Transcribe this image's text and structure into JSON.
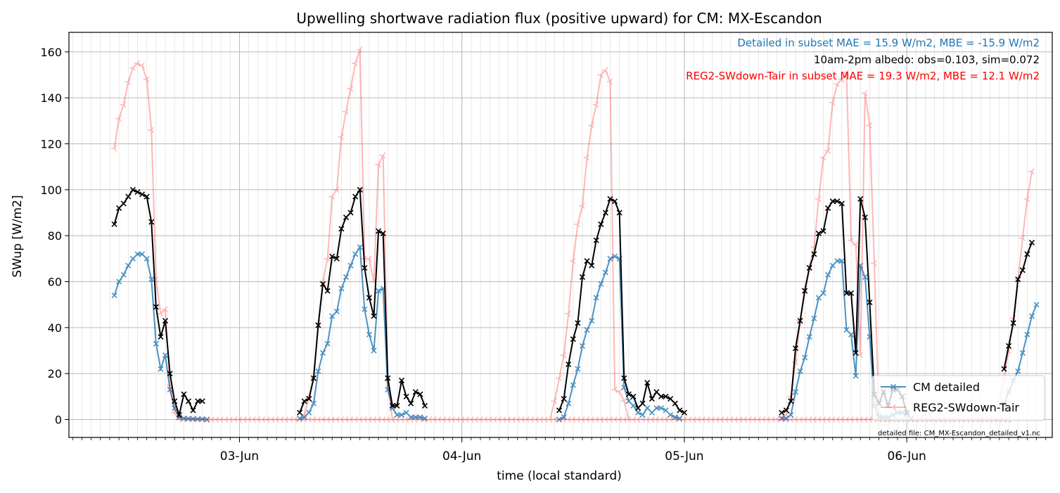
{
  "chart_data": {
    "type": "line",
    "title": "Upwelling shortwave radiation flux (positive upward) for CM: MX-Escandon",
    "xlabel": "time (local standard)",
    "ylabel": "SWup [W/m2]",
    "x_unit": "hours",
    "x_tick_labels": [
      "03-Jun",
      "04-Jun",
      "05-Jun",
      "06-Jun"
    ],
    "x_tick_values": [
      24,
      48,
      72,
      96
    ],
    "xlim": [
      5.6,
      111.7
    ],
    "ylim": [
      -7.8,
      168.5
    ],
    "y_ticks": [
      0,
      20,
      40,
      60,
      80,
      100,
      120,
      140,
      160
    ],
    "grid": true,
    "legend_position": "lower-right",
    "annotations": [
      {
        "text": "Detailed in subset MAE = 15.9 W/m2, MBE = -15.9 W/m2",
        "color": "#1f77b4"
      },
      {
        "text": "10am-2pm albedo: obs=0.103, sim=0.072",
        "color": "#000000"
      },
      {
        "text": "REG2-SWdown-Tair in subset MAE = 19.3 W/m2, MBE = 12.1 W/m2",
        "color": "#ff0000"
      }
    ],
    "footnote": "detailed file: CM_MX-Escandon_detailed_v1.nc",
    "series": [
      {
        "name": "CM detailed",
        "color": "#1f77b4",
        "marker": "x",
        "alpha": 0.8,
        "segments": [
          {
            "x0": 10.5,
            "step": 0.5,
            "y": [
              54,
              60,
              63,
              67,
              70,
              72,
              72,
              70,
              61,
              33,
              22,
              28,
              13,
              5,
              1,
              0.5,
              0.4,
              0.3,
              0.2,
              0.2,
              0
            ]
          },
          {
            "x0": 30.5,
            "step": 0.5,
            "y": [
              0.5,
              1,
              3,
              7,
              21,
              29,
              33,
              45,
              47,
              57,
              62,
              67,
              72,
              75,
              48,
              37,
              30,
              56,
              57,
              13,
              5,
              2,
              2,
              3,
              1,
              1,
              1,
              0.5
            ]
          },
          {
            "x0": 58.5,
            "step": 0.5,
            "y": [
              0,
              1,
              7,
              15,
              22,
              32,
              39,
              43,
              53,
              59,
              64,
              70,
              71,
              70,
              14,
              8,
              6,
              3,
              2,
              5,
              3,
              5,
              5,
              4,
              2,
              1,
              0.5
            ]
          },
          {
            "x0": 82.5,
            "step": 0.5,
            "y": [
              0.5,
              0.5,
              2,
              12,
              21,
              27,
              36,
              44,
              53,
              55,
              63,
              67,
              69,
              69,
              39,
              37,
              19,
              67,
              62,
              36,
              6,
              1,
              1,
              1,
              2,
              3,
              3,
              2,
              0.5
            ]
          },
          {
            "x0": 106.5,
            "step": 0.5,
            "y": [
              7,
              12,
              17,
              21,
              29,
              37,
              45,
              50
            ]
          }
        ]
      },
      {
        "name": "REG2-SWdown-Tair",
        "color": "#ff0000",
        "marker": "tri_left",
        "alpha": 0.28,
        "segments": [
          {
            "x0": 10.5,
            "step": 0.5,
            "y": [
              118,
              131,
              137,
              147,
              153,
              155,
              154,
              148,
              126,
              61,
              46,
              48,
              15,
              3,
              0
            ]
          },
          {
            "x0": 18.0,
            "step": 0.5,
            "y": [
              0,
              0,
              0,
              0,
              0,
              0,
              0,
              0,
              0,
              0,
              0,
              0,
              0,
              0,
              0,
              0,
              0,
              0,
              0,
              0,
              0,
              0,
              0,
              0,
              0,
              0,
              0,
              0,
              0,
              0,
              0,
              0,
              0,
              0,
              0,
              0,
              0,
              0,
              0,
              0,
              0,
              0,
              0,
              0,
              0,
              0,
              0,
              0,
              0,
              0,
              0,
              0,
              0,
              0,
              0,
              0,
              0,
              0,
              0,
              0,
              0,
              0,
              0,
              0,
              0,
              0,
              0,
              0,
              0,
              0,
              0,
              0,
              0,
              0,
              0,
              0,
              0,
              0,
              0,
              0,
              0,
              0,
              0,
              0,
              0,
              0,
              0,
              0,
              0,
              0,
              0,
              0,
              0,
              0,
              0,
              0,
              0,
              0,
              0,
              0,
              0,
              0,
              0,
              0,
              0,
              0,
              0,
              0,
              0,
              0,
              0,
              0,
              0,
              0,
              0,
              0,
              0,
              0,
              0,
              0,
              0,
              0,
              0,
              0,
              0,
              0,
              0,
              0,
              0,
              0,
              0,
              0,
              0,
              0,
              0,
              0,
              0,
              0,
              0,
              0,
              0,
              0,
              0,
              0,
              0,
              0,
              0,
              0,
              0,
              0,
              0,
              0,
              0,
              0,
              0,
              0,
              0,
              0,
              0,
              0,
              0,
              0,
              0,
              0,
              0,
              0,
              0,
              0,
              0,
              0,
              0,
              0,
              0,
              0,
              0,
              0,
              0,
              0,
              0
            ]
          },
          {
            "x0": 31.0,
            "step": 0.5,
            "y": [
              2,
              10,
              18,
              42,
              60,
              70,
              97,
              100,
              123,
              134,
              144,
              155,
              161,
              70,
              70,
              60,
              111,
              115,
              17,
              0
            ]
          },
          {
            "x0": 57.5,
            "step": 0.5,
            "y": [
              0,
              8,
              18,
              28,
              46,
              69,
              85,
              93,
              114,
              128,
              137,
              150,
              152,
              147,
              13,
              12,
              8,
              0
            ]
          },
          {
            "x0": 82.5,
            "step": 0.5,
            "y": [
              1,
              2,
              10,
              25,
              43,
              57,
              67,
              75,
              96,
              114,
              117,
              138,
              146,
              148,
              151,
              78,
              76,
              28,
              142,
              128,
              68,
              2,
              0
            ]
          },
          {
            "x0": 106.0,
            "step": 0.5,
            "y": [
              8,
              18,
              30,
              44,
              61,
              79,
              96,
              108
            ]
          }
        ]
      },
      {
        "name": "",
        "color": "#000000",
        "marker": "x",
        "alpha": 1,
        "segments": [
          {
            "x0": 10.5,
            "step": 0.5,
            "y": [
              85,
              92,
              94,
              97,
              100,
              99,
              98,
              97,
              86,
              49,
              36,
              43,
              20,
              8,
              2,
              11,
              8,
              4,
              8,
              8
            ]
          },
          {
            "x0": 30.5,
            "step": 0.5,
            "y": [
              3,
              8,
              9,
              18,
              41,
              59,
              56,
              71,
              70,
              83,
              88,
              90,
              97,
              100,
              66,
              53,
              45,
              82,
              81,
              18,
              6,
              6,
              17,
              10,
              7,
              12,
              11,
              6
            ]
          },
          {
            "x0": 58.5,
            "step": 0.5,
            "y": [
              4,
              9,
              24,
              35,
              42,
              62,
              69,
              67,
              78,
              85,
              90,
              96,
              95,
              90,
              18,
              11,
              10,
              5,
              7,
              16,
              9,
              12,
              10,
              10,
              9,
              7,
              4,
              3
            ]
          },
          {
            "x0": 82.5,
            "step": 0.5,
            "y": [
              3,
              4,
              8,
              31,
              43,
              56,
              66,
              72,
              81,
              82,
              92,
              95,
              95,
              94,
              55,
              55,
              29,
              96,
              88,
              51,
              11,
              7,
              12,
              6,
              13,
              13,
              10,
              3
            ]
          },
          {
            "x0": 106.5,
            "step": 0.5,
            "y": [
              22,
              32,
              42,
              61,
              65,
              72,
              77
            ]
          }
        ]
      }
    ],
    "legend": [
      {
        "label": "CM detailed",
        "color": "#1f77b4",
        "marker": "x"
      },
      {
        "label": "REG2-SWdown-Tair",
        "color": "#ff0000",
        "marker": "tri_left"
      }
    ]
  }
}
